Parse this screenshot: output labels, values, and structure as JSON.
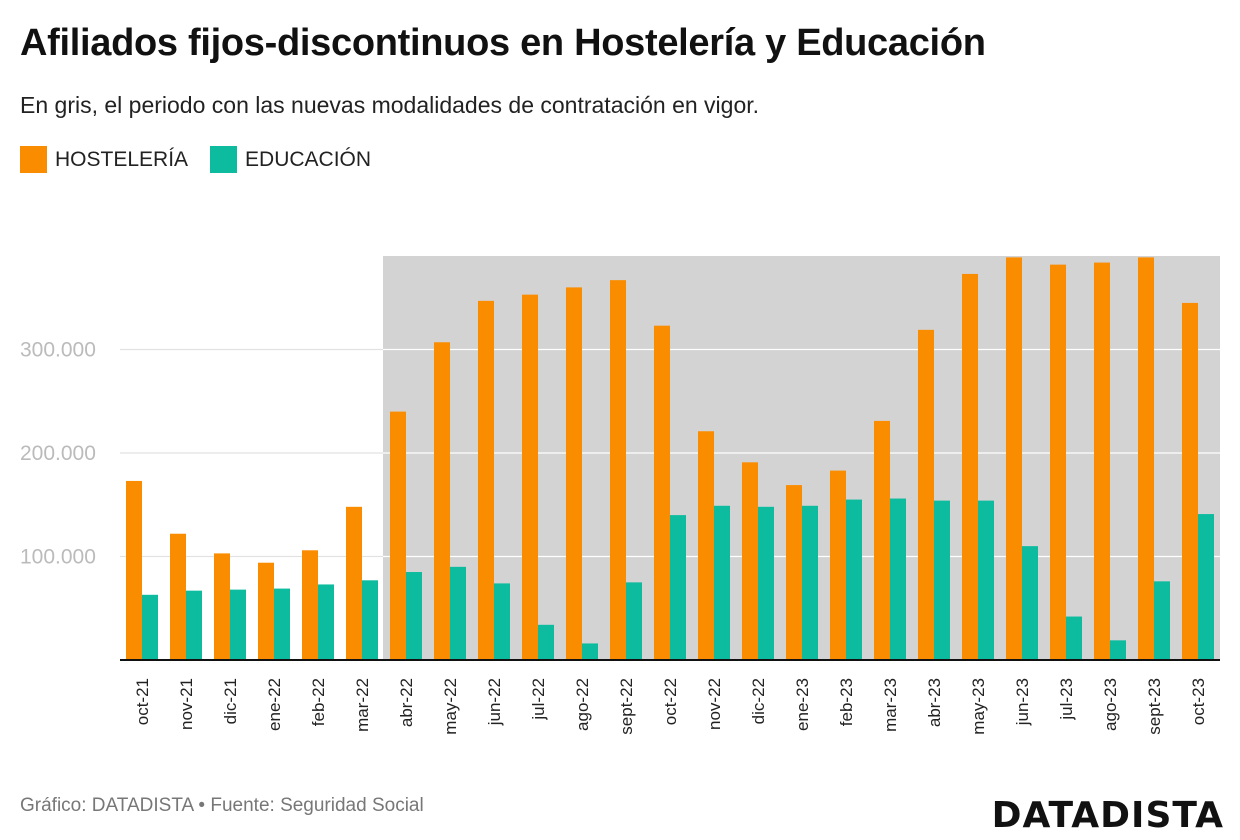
{
  "header": {
    "title": "Afiliados fijos-discontinuos en Hostelería y Educación",
    "subtitle": "En gris, el periodo con las nuevas modalidades de contratación en vigor."
  },
  "legend": [
    {
      "label": "HOSTELERÍA",
      "color": "#FA8C00"
    },
    {
      "label": "EDUCACIÓN",
      "color": "#0DBB9E"
    }
  ],
  "footer": {
    "source": "Gráfico: DATADISTA • Fuente: Seguridad Social",
    "logo": "DATADISTA"
  },
  "chart_data": {
    "type": "bar",
    "title": "Afiliados fijos-discontinuos en Hostelería y Educación",
    "xlabel": "",
    "ylabel": "",
    "ylim": [
      0,
      390000
    ],
    "yticks": [
      100000,
      200000,
      300000
    ],
    "ytick_labels": [
      "100.000",
      "200.000",
      "300.000"
    ],
    "grid": true,
    "shaded_period_start": "abr-22",
    "shaded_color": "#D3D3D3",
    "categories": [
      "oct-21",
      "nov-21",
      "dic-21",
      "ene-22",
      "feb-22",
      "mar-22",
      "abr-22",
      "may-22",
      "jun-22",
      "jul-22",
      "ago-22",
      "sept-22",
      "oct-22",
      "nov-22",
      "dic-22",
      "ene-23",
      "feb-23",
      "mar-23",
      "abr-23",
      "may-23",
      "jun-23",
      "jul-23",
      "ago-23",
      "sept-23",
      "oct-23"
    ],
    "series": [
      {
        "name": "HOSTELERÍA",
        "color": "#FA8C00",
        "values": [
          173000,
          122000,
          103000,
          94000,
          106000,
          148000,
          240000,
          307000,
          347000,
          353000,
          360000,
          367000,
          323000,
          221000,
          191000,
          169000,
          183000,
          231000,
          319000,
          373000,
          389000,
          382000,
          384000,
          389000,
          345000
        ]
      },
      {
        "name": "EDUCACIÓN",
        "color": "#0DBB9E",
        "values": [
          63000,
          67000,
          68000,
          69000,
          73000,
          77000,
          85000,
          90000,
          74000,
          34000,
          16000,
          75000,
          140000,
          149000,
          148000,
          149000,
          155000,
          156000,
          154000,
          154000,
          110000,
          42000,
          19000,
          76000,
          141000
        ]
      }
    ]
  }
}
